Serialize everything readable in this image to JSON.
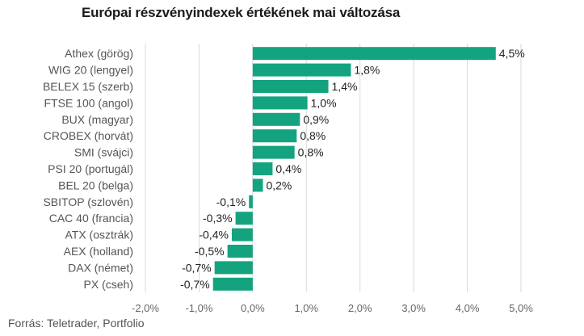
{
  "chart_data": {
    "type": "bar",
    "orientation": "horizontal",
    "title": "Európai részvényindexek értékének mai változása",
    "categories": [
      "Athex (görög)",
      "WIG 20 (lengyel)",
      "BELEX 15 (szerb)",
      "FTSE 100 (angol)",
      "BUX (magyar)",
      "CROBEX (horvát)",
      "SMI (svájci)",
      "PSI 20 (portugál)",
      "BEL 20 (belga)",
      "SBITOP (szlovén)",
      "CAC 40 (francia)",
      "ATX (osztrák)",
      "AEX (holland)",
      "DAX (német)",
      "PX (cseh)"
    ],
    "values": [
      4.53,
      1.83,
      1.41,
      1.02,
      0.88,
      0.82,
      0.78,
      0.37,
      0.19,
      -0.07,
      -0.32,
      -0.39,
      -0.47,
      -0.71,
      -0.74
    ],
    "value_labels": [
      "4,5%",
      "1,8%",
      "1,4%",
      "1,0%",
      "0,9%",
      "0,8%",
      "0,8%",
      "0,4%",
      "0,2%",
      "-0,1%",
      "-0,3%",
      "-0,4%",
      "-0,5%",
      "-0,7%",
      "-0,7%"
    ],
    "x_ticks": [
      -2,
      -1,
      0,
      1,
      2,
      3,
      4,
      5
    ],
    "x_tick_labels": [
      "-2,0%",
      "-1,0%",
      "0,0%",
      "1,0%",
      "2,0%",
      "3,0%",
      "4,0%",
      "5,0%"
    ],
    "xlim": [
      -2,
      5
    ],
    "grid": "vertical",
    "bar_color": "#14a37f",
    "grid_color": "#d9d9d9",
    "xlabel": "",
    "ylabel": ""
  },
  "source": "Forrás: Teletrader, Portfolio"
}
